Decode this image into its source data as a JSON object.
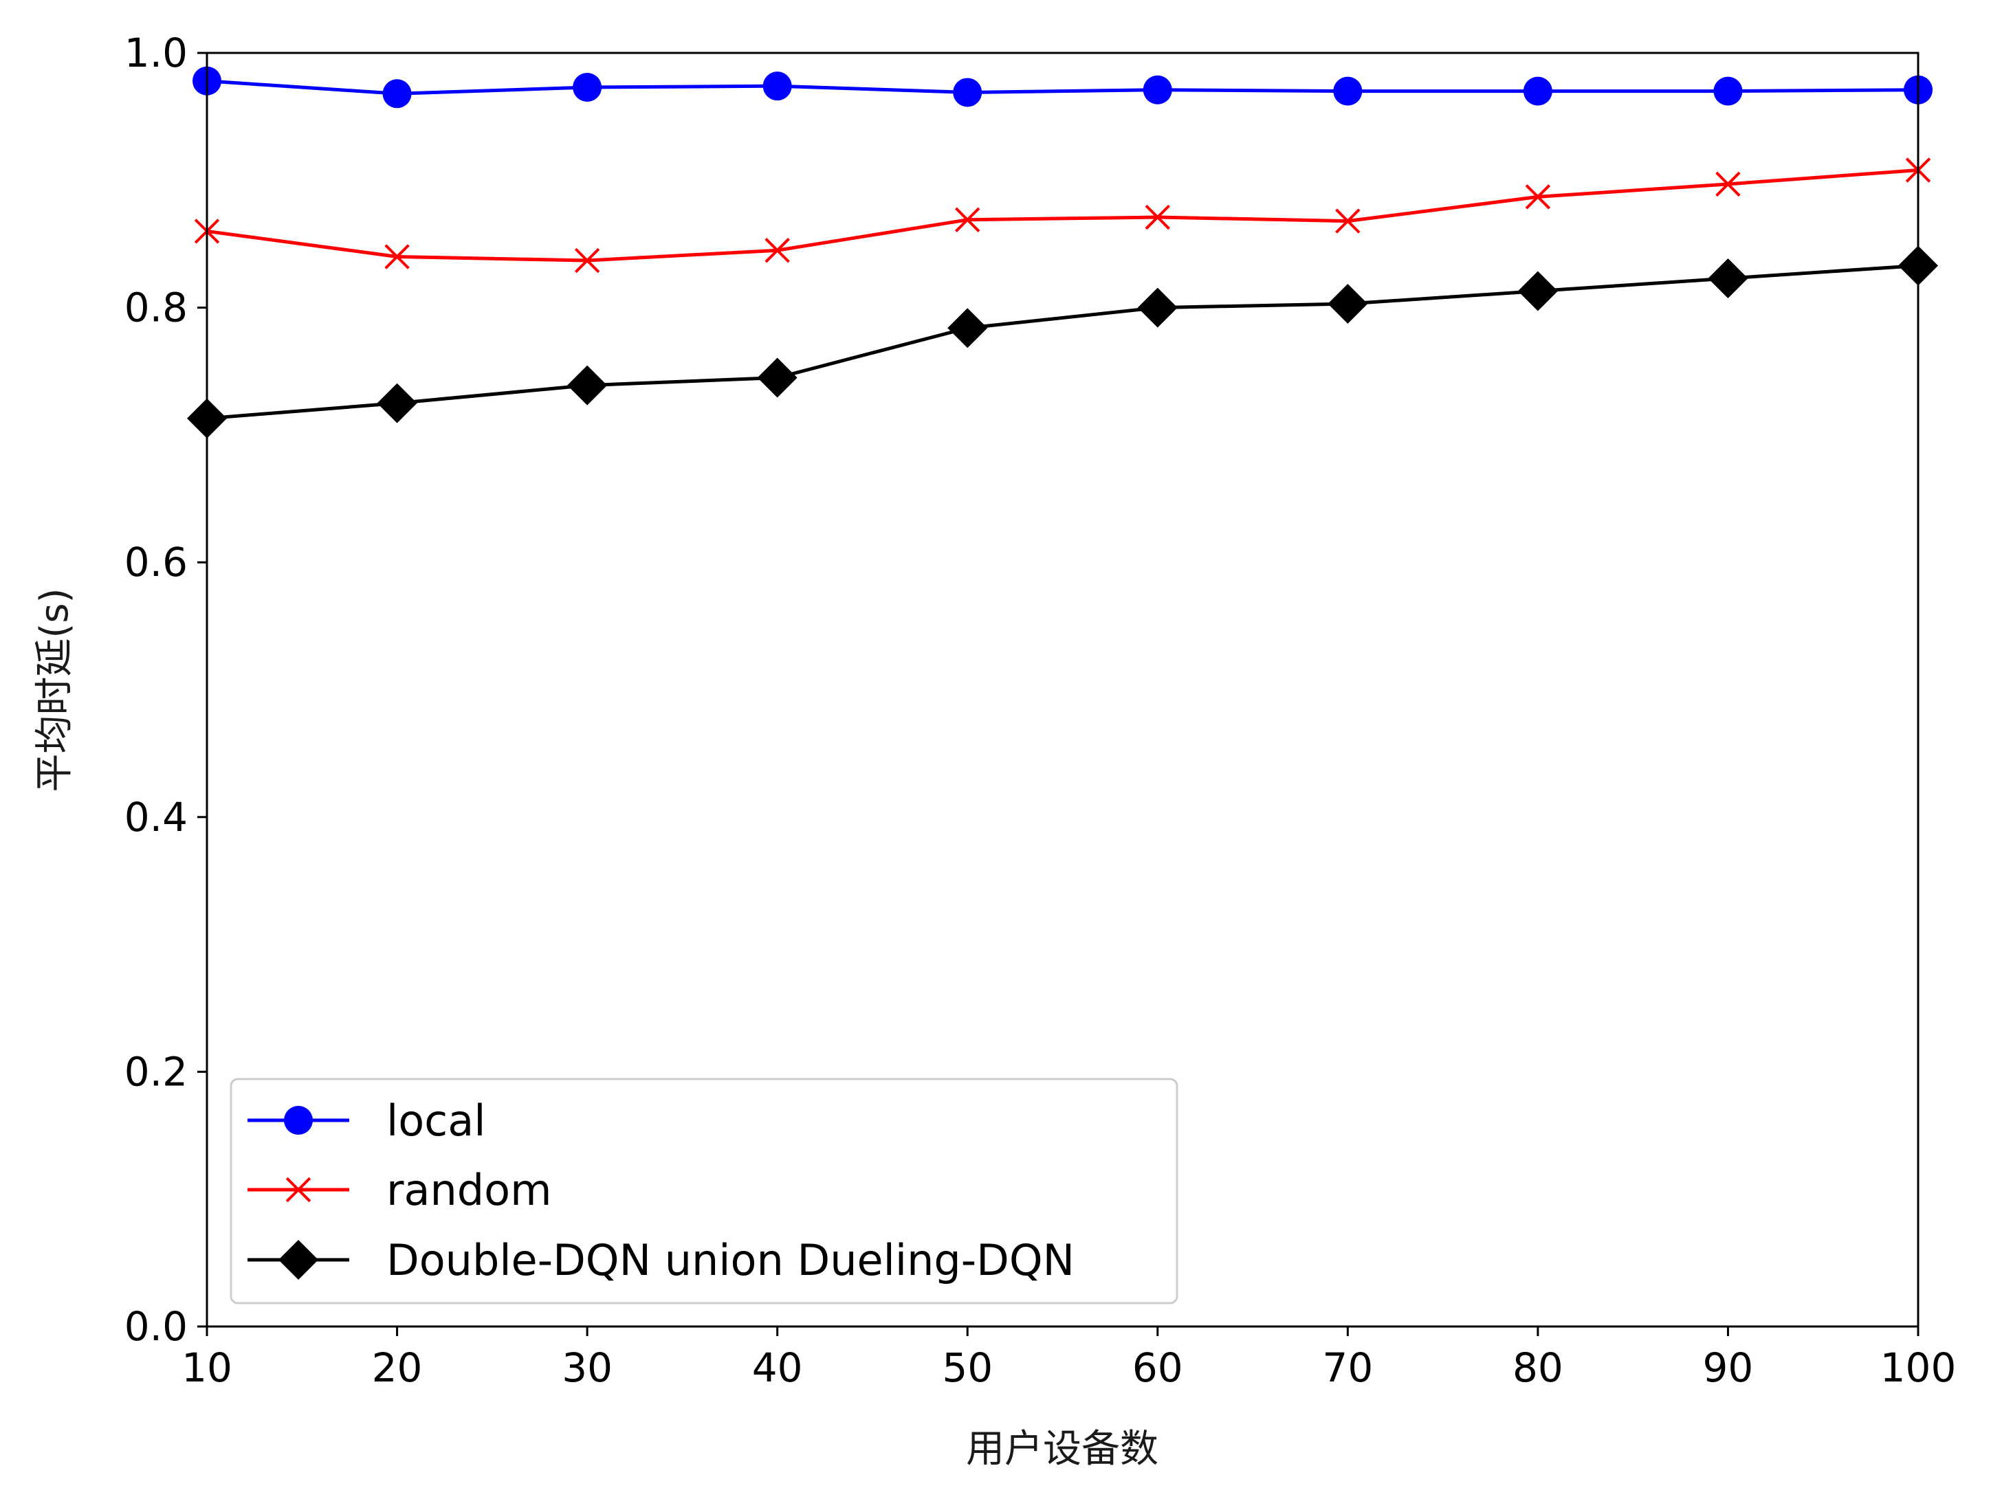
{
  "chart_data": {
    "type": "line",
    "title": "",
    "xlabel": "用户设备数",
    "ylabel": "平均时延(s)",
    "xlim": [
      10,
      100
    ],
    "ylim": [
      0.0,
      1.0
    ],
    "xticks": [
      "10",
      "20",
      "30",
      "40",
      "50",
      "60",
      "70",
      "80",
      "90",
      "100"
    ],
    "yticks": [
      "0.0",
      "0.2",
      "0.4",
      "0.6",
      "0.8",
      "1.0"
    ],
    "grid": false,
    "legend_position": "lower-left",
    "x": [
      10,
      20,
      30,
      40,
      50,
      60,
      70,
      80,
      90,
      100
    ],
    "series": [
      {
        "name": "local",
        "color": "#0000ff",
        "marker": "circle",
        "values": [
          0.978,
          0.968,
          0.973,
          0.974,
          0.969,
          0.971,
          0.97,
          0.97,
          0.97,
          0.971
        ]
      },
      {
        "name": "random",
        "color": "#ff0000",
        "marker": "x",
        "values": [
          0.86,
          0.84,
          0.837,
          0.845,
          0.869,
          0.871,
          0.868,
          0.887,
          0.897,
          0.908
        ]
      },
      {
        "name": "Double-DQN union Dueling-DQN",
        "color": "#000000",
        "marker": "diamond",
        "values": [
          0.713,
          0.725,
          0.739,
          0.745,
          0.784,
          0.8,
          0.803,
          0.813,
          0.823,
          0.833
        ]
      }
    ]
  }
}
